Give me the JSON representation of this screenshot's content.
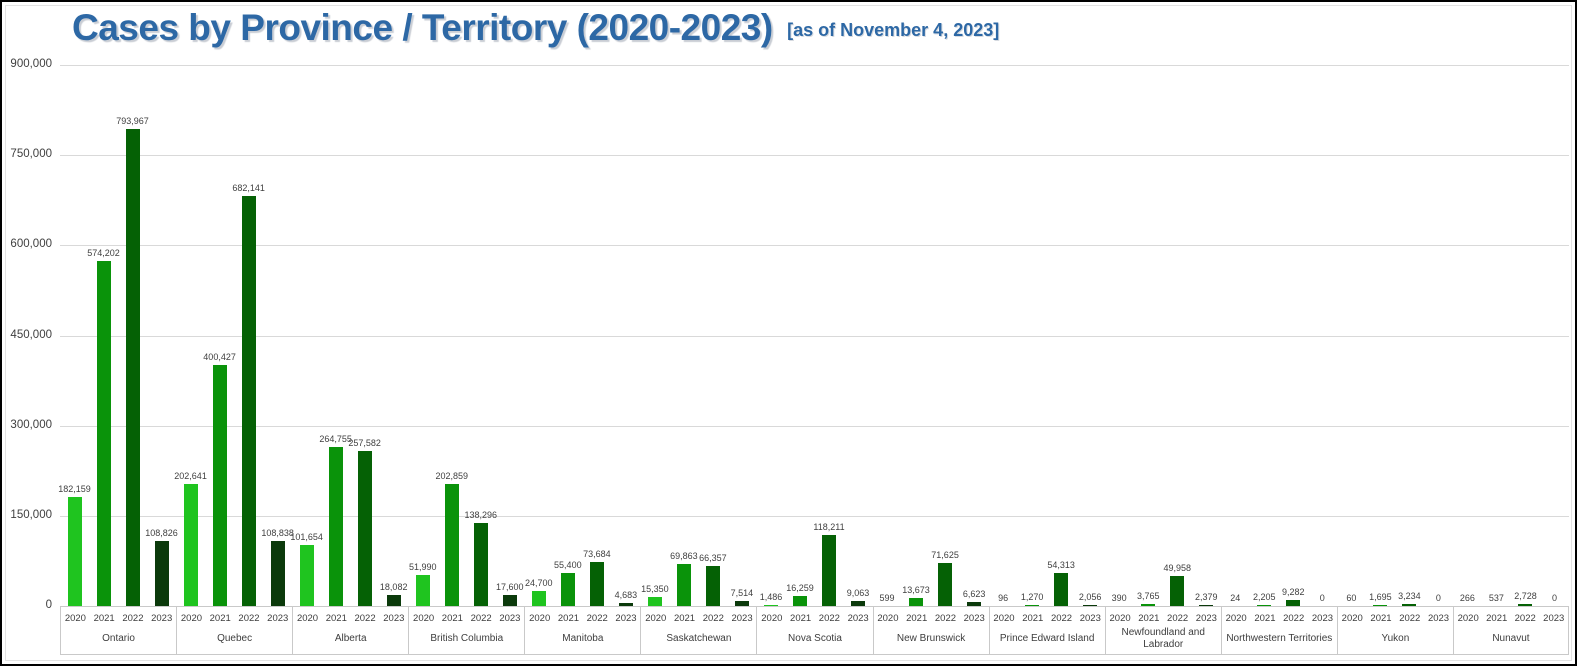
{
  "header": {
    "title": "Cases by Province / Territory (2020-2023)",
    "subtitle": "[as of November 4, 2023]"
  },
  "colors": {
    "title_blue": "#2d68a5",
    "gridline": "#d9d9d9",
    "label_border": "#c9c9c9",
    "bar_2020": "#1fc41f",
    "bar_2021": "#0a930a",
    "bar_2022": "#056105",
    "bar_2023": "#0b3a0b"
  },
  "chart_data": {
    "type": "bar",
    "title": "Cases by Province / Territory (2020-2023)",
    "subtitle": "[as of November 4, 2023]",
    "categories": [
      "Ontario",
      "Quebec",
      "Alberta",
      "British Columbia",
      "Manitoba",
      "Saskatchewan",
      "Nova Scotia",
      "New Brunswick",
      "Prince Edward Island",
      "Newfoundland and Labrador",
      "Northwestern Territories",
      "Yukon",
      "Nunavut"
    ],
    "series": [
      {
        "name": "2020",
        "color": "#1fc41f",
        "values": [
          182159,
          202641,
          101654,
          51990,
          24700,
          15350,
          1486,
          599,
          96,
          390,
          24,
          60,
          266
        ]
      },
      {
        "name": "2021",
        "color": "#0a930a",
        "values": [
          574202,
          400427,
          264755,
          202859,
          55400,
          69863,
          16259,
          13673,
          1270,
          3765,
          2205,
          1695,
          537
        ]
      },
      {
        "name": "2022",
        "color": "#056105",
        "values": [
          793967,
          682141,
          257582,
          138296,
          73684,
          66357,
          118211,
          71625,
          54313,
          49958,
          9282,
          3234,
          2728
        ]
      },
      {
        "name": "2023",
        "color": "#0b3a0b",
        "values": [
          108826,
          108838,
          18082,
          17600,
          4683,
          7514,
          9063,
          6623,
          2056,
          2379,
          0,
          0,
          0
        ]
      }
    ],
    "xlabel": "",
    "ylabel": "",
    "ylim": [
      0,
      900000
    ],
    "yticks": [
      0,
      150000,
      300000,
      450000,
      600000,
      750000,
      900000
    ],
    "grid": "horizontal",
    "legend_position": "none",
    "value_labels": true
  }
}
